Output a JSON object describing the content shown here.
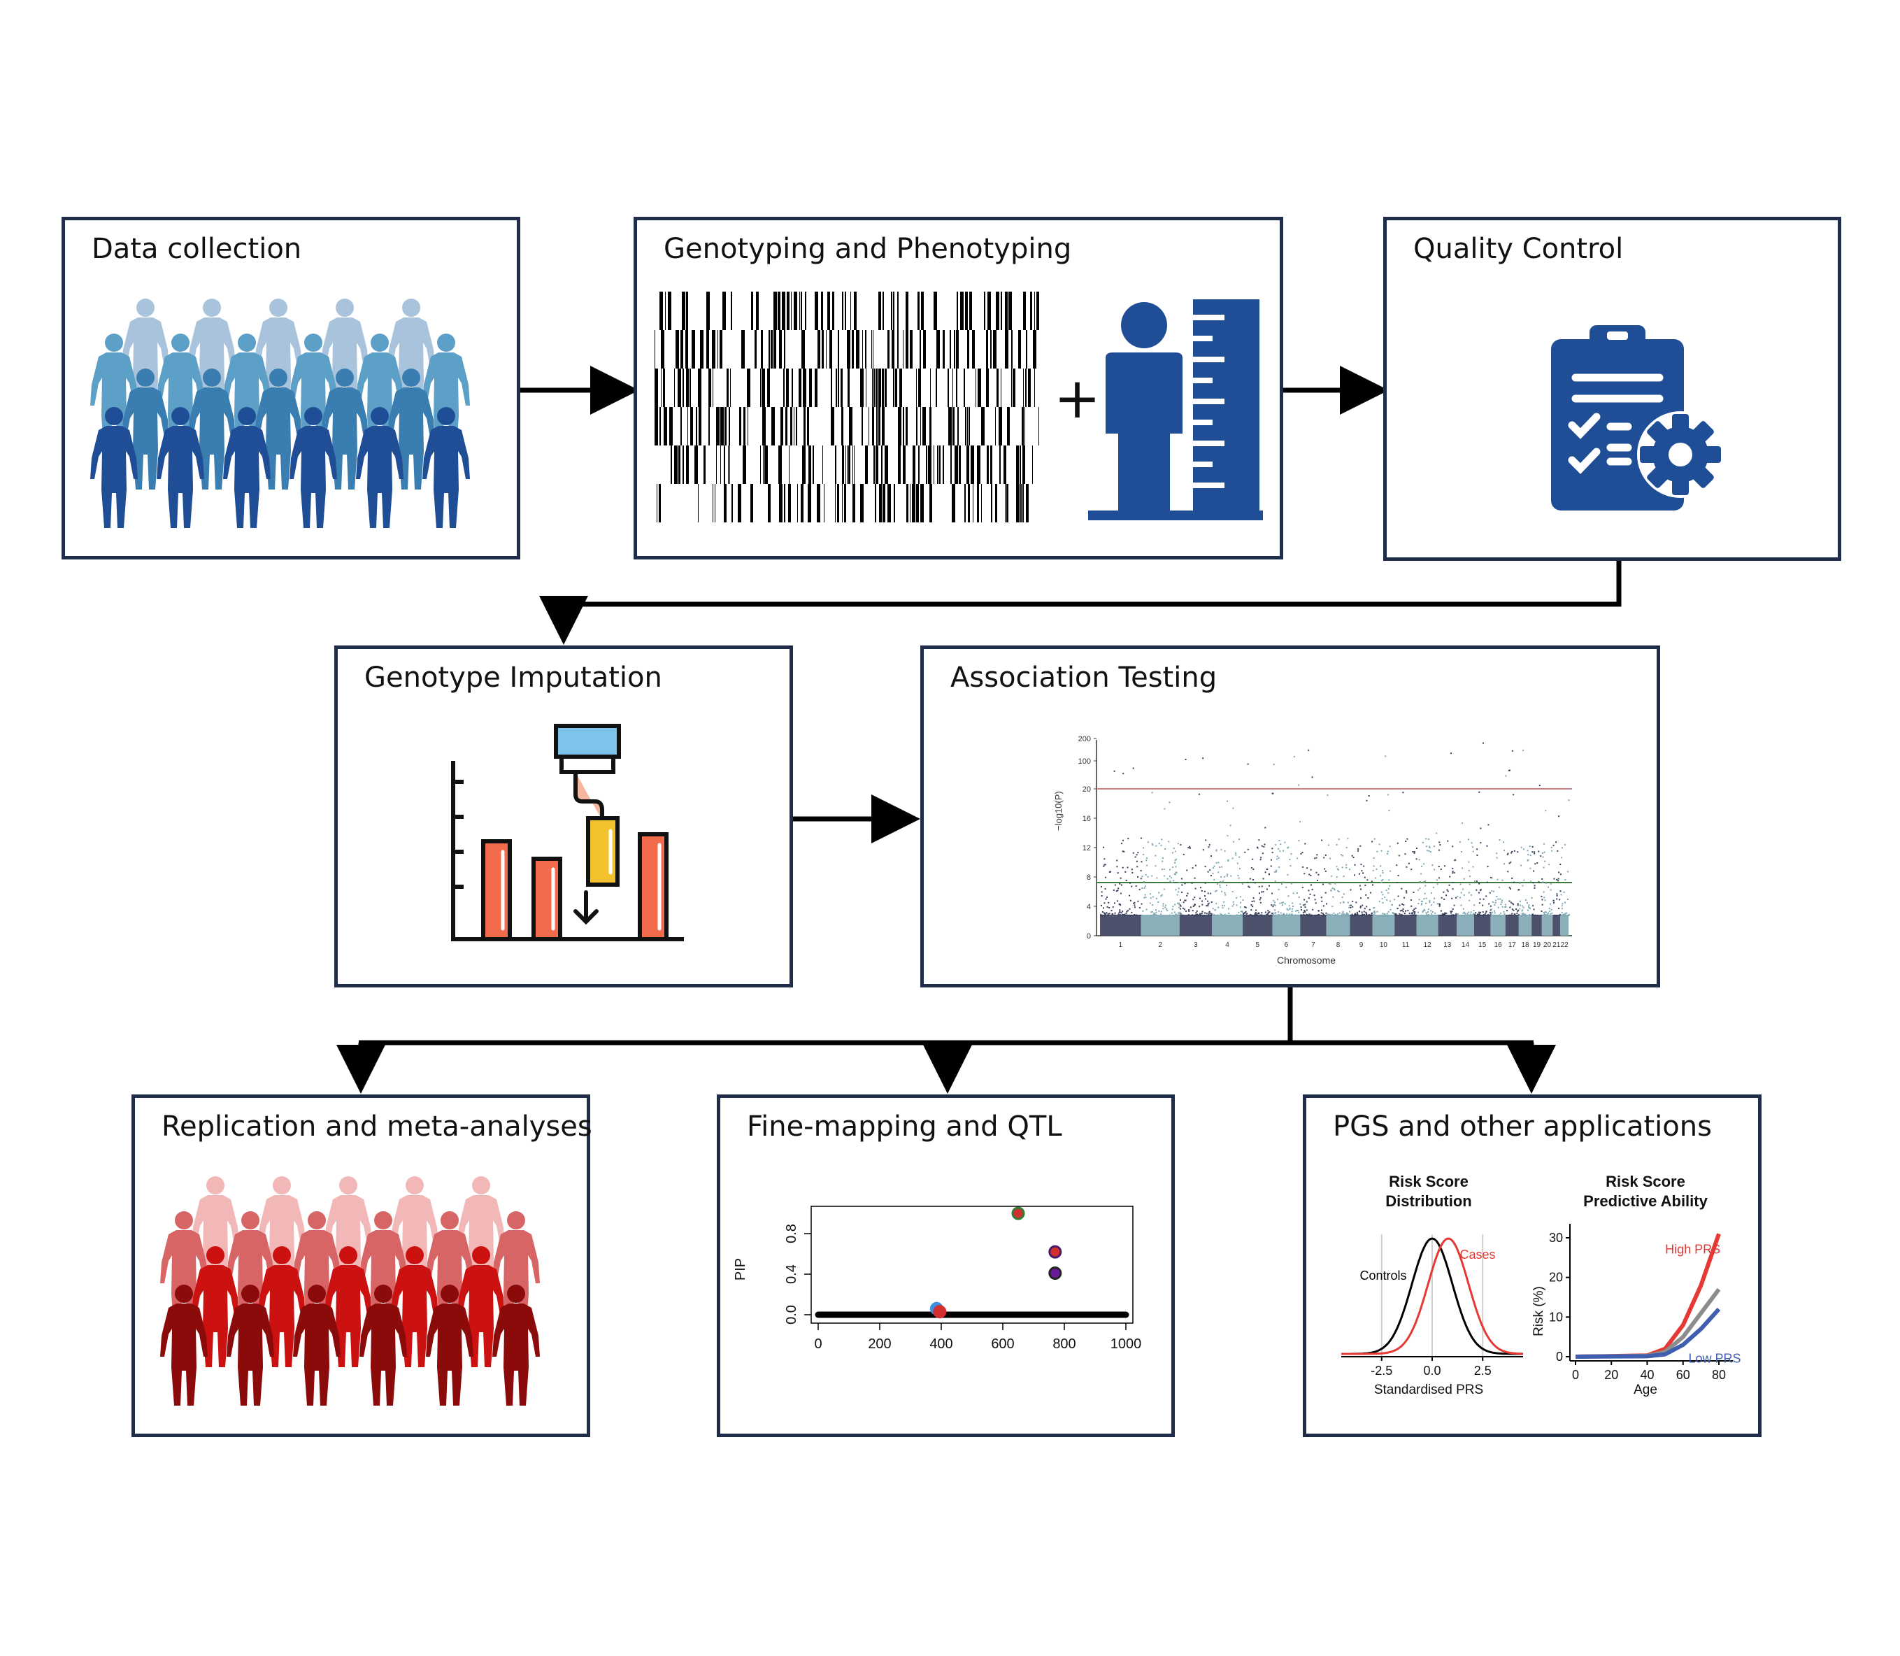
{
  "steps": {
    "data_collection": "Data collection",
    "genotyping": "Genotyping and Phenotyping",
    "quality_control": "Quality Control",
    "imputation": "Genotype Imputation",
    "association": "Association Testing",
    "replication": "Replication and meta-analyses",
    "finemapping": "Fine-mapping and QTL",
    "pgs": "PGS and other applications"
  },
  "plus_sign": "+",
  "colors": {
    "border": "#1f2d4a",
    "blue_dark": "#1f4e96",
    "blue_mid": "#3f88b8",
    "blue_light": "#a9c3dc",
    "red_dark": "#8b0a0a",
    "red_mid": "#c62828",
    "red_light": "#f2b8b8"
  },
  "icons": {
    "people_blue": "people-crowd-icon",
    "barcode": "genotype-barcode-icon",
    "height": "person-height-ruler-icon",
    "qc": "clipboard-gear-icon",
    "imputation": "pipette-bar-chart-icon",
    "people_red": "people-crowd-icon"
  },
  "manhattan": {
    "ylabel": "−log10(P)",
    "xlabel": "Chromosome",
    "yticks": [
      "0",
      "4",
      "8",
      "12",
      "16",
      "20",
      "100",
      "200"
    ],
    "chromosomes": [
      "1",
      "2",
      "3",
      "4",
      "5",
      "6",
      "7",
      "8",
      "9",
      "10",
      "11",
      "12",
      "13",
      "14",
      "15",
      "16",
      "17",
      "18",
      "19",
      "20",
      "21",
      "22"
    ],
    "colors": [
      "#3a3f5c",
      "#7fa7b3"
    ]
  },
  "chart_data": [
    {
      "type": "scatter",
      "title": "",
      "xlabel": "",
      "ylabel": "PIP",
      "xlim": [
        0,
        1000
      ],
      "ylim": [
        0,
        1
      ],
      "xticks": [
        "0",
        "200",
        "400",
        "600",
        "800",
        "1000"
      ],
      "yticks": [
        "0.0",
        "0.4",
        "0.8"
      ],
      "points": [
        {
          "x": 650,
          "y": 1.0,
          "fill": "#d32f2f",
          "edge": "#2e7d32"
        },
        {
          "x": 770,
          "y": 0.62,
          "fill": "#d32f2f",
          "edge": "#4a1a6b"
        },
        {
          "x": 770,
          "y": 0.41,
          "fill": "#6a1b9a",
          "edge": "#222"
        },
        {
          "x": 385,
          "y": 0.06,
          "fill": "#3d8fe0",
          "edge": "#3d8fe0"
        },
        {
          "x": 395,
          "y": 0.03,
          "fill": "#d32f2f",
          "edge": "#d32f2f"
        }
      ]
    },
    {
      "type": "line",
      "title": "Risk Score Distribution",
      "xlabel": "Standardised PRS",
      "ylabel": "",
      "xticks": [
        "-2.5",
        "0.0",
        "2.5"
      ],
      "xlim": [
        -4.5,
        4.5
      ],
      "series": [
        {
          "name": "Controls",
          "mean": 0.0,
          "sd": 1.0,
          "color": "#000000"
        },
        {
          "name": "Cases",
          "mean": 0.8,
          "sd": 1.0,
          "color": "#e53935"
        }
      ]
    },
    {
      "type": "line",
      "title": "Risk Score Predictive Ability",
      "xlabel": "Age",
      "ylabel": "Risk (%)",
      "xlim": [
        0,
        80
      ],
      "ylim": [
        0,
        30
      ],
      "xticks": [
        "0",
        "20",
        "40",
        "60",
        "80"
      ],
      "yticks": [
        "0",
        "10",
        "20",
        "30"
      ],
      "series": [
        {
          "name": "High PRS",
          "x": [
            0,
            40,
            50,
            60,
            70,
            80
          ],
          "y": [
            0,
            0.3,
            2,
            8,
            18,
            31
          ],
          "color": "#e53935"
        },
        {
          "name": "",
          "x": [
            0,
            40,
            50,
            60,
            70,
            80
          ],
          "y": [
            0,
            0.2,
            1.2,
            5,
            11,
            17
          ],
          "color": "#8c8c8c"
        },
        {
          "name": "Low PRS",
          "x": [
            0,
            40,
            50,
            60,
            70,
            80
          ],
          "y": [
            0,
            0.1,
            0.6,
            3,
            7,
            12
          ],
          "color": "#3f5fae"
        }
      ]
    }
  ]
}
